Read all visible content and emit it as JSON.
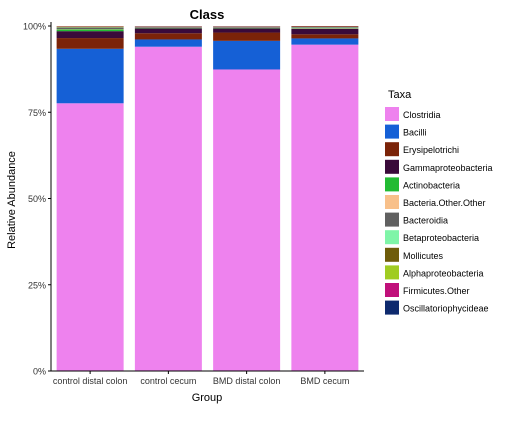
{
  "chart_data": {
    "type": "bar",
    "stacked": true,
    "title": "Class",
    "xlabel": "Group",
    "ylabel": "Relative Abundance",
    "ylim": [
      0,
      1
    ],
    "y_ticks": [
      "0%",
      "25%",
      "50%",
      "75%",
      "100%"
    ],
    "categories": [
      "control distal colon",
      "control cecum",
      "BMD distal colon",
      "BMD cecum"
    ],
    "legend_title": "Taxa",
    "legend_position": "right",
    "grid": false,
    "series": [
      {
        "name": "Clostridia",
        "color": "#ee82ee",
        "values": [
          0.776,
          0.94,
          0.874,
          0.946
        ]
      },
      {
        "name": "Bacilli",
        "color": "#1560d6",
        "values": [
          0.158,
          0.021,
          0.083,
          0.018
        ]
      },
      {
        "name": "Erysipelotrichi",
        "color": "#7b2308",
        "values": [
          0.031,
          0.018,
          0.024,
          0.012
        ]
      },
      {
        "name": "Gammaproteobacteria",
        "color": "#3a0a3a",
        "values": [
          0.02,
          0.014,
          0.012,
          0.016
        ]
      },
      {
        "name": "Actinobacteria",
        "color": "#22bb33",
        "values": [
          0.005,
          0.001,
          0.001,
          0.001
        ]
      },
      {
        "name": "Bacteria.Other.Other",
        "color": "#f8c08a",
        "values": [
          0.001,
          0.001,
          0.001,
          0.001
        ]
      },
      {
        "name": "Bacteroidia",
        "color": "#606060",
        "values": [
          0.004,
          0.002,
          0.002,
          0.002
        ]
      },
      {
        "name": "Betaproteobacteria",
        "color": "#7ff5a8",
        "values": [
          0.001,
          0.001,
          0.001,
          0.001
        ]
      },
      {
        "name": "Mollicutes",
        "color": "#6e5c0a",
        "values": [
          0.002,
          0.001,
          0.001,
          0.002
        ]
      },
      {
        "name": "Alphaproteobacteria",
        "color": "#a0cc22",
        "values": [
          0.001,
          0.0,
          0.0,
          0.0
        ]
      },
      {
        "name": "Firmicutes.Other",
        "color": "#c0107a",
        "values": [
          0.001,
          0.001,
          0.001,
          0.001
        ]
      },
      {
        "name": "Oscillatoriophycideae",
        "color": "#0e2a6e",
        "values": [
          0.0,
          0.0,
          0.0,
          0.0
        ]
      }
    ]
  }
}
